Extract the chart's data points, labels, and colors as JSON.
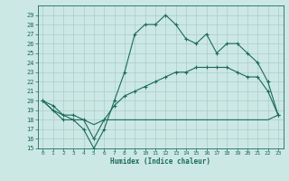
{
  "title": "",
  "xlabel": "Humidex (Indice chaleur)",
  "ylabel": "",
  "bg_color": "#cce8e4",
  "grid_color": "#aaccca",
  "line_color": "#1a6b5a",
  "xlim": [
    -0.5,
    23.5
  ],
  "ylim": [
    15,
    30
  ],
  "yticks": [
    15,
    16,
    17,
    18,
    19,
    20,
    21,
    22,
    23,
    24,
    25,
    26,
    27,
    28,
    29
  ],
  "xticks": [
    0,
    1,
    2,
    3,
    4,
    5,
    6,
    7,
    8,
    9,
    10,
    11,
    12,
    13,
    14,
    15,
    16,
    17,
    18,
    19,
    20,
    21,
    22,
    23
  ],
  "line1_x": [
    0,
    1,
    2,
    3,
    4,
    5,
    6,
    7,
    8,
    9,
    10,
    11,
    12,
    13,
    14,
    15,
    16,
    17,
    18,
    19,
    20,
    21,
    22,
    23
  ],
  "line1_y": [
    20,
    19,
    18,
    18,
    17,
    15,
    17,
    20,
    23,
    27,
    28,
    28,
    29,
    28,
    26.5,
    26,
    27,
    25,
    26,
    26,
    25,
    24,
    22,
    18.5
  ],
  "line2_x": [
    0,
    1,
    2,
    3,
    4,
    5,
    6,
    7,
    8,
    9,
    10,
    11,
    12,
    13,
    14,
    15,
    16,
    17,
    18,
    19,
    20,
    21,
    22,
    23
  ],
  "line2_y": [
    20,
    19.5,
    18.5,
    18.5,
    18,
    16,
    18,
    19.5,
    20.5,
    21,
    21.5,
    22,
    22.5,
    23,
    23,
    23.5,
    23.5,
    23.5,
    23.5,
    23,
    22.5,
    22.5,
    21,
    18.5
  ],
  "line3_x": [
    0,
    1,
    2,
    3,
    4,
    5,
    6,
    7,
    8,
    9,
    10,
    11,
    12,
    13,
    14,
    15,
    16,
    17,
    18,
    19,
    20,
    21,
    22,
    23
  ],
  "line3_y": [
    20,
    19,
    18.5,
    18,
    18,
    17.5,
    18,
    18,
    18,
    18,
    18,
    18,
    18,
    18,
    18,
    18,
    18,
    18,
    18,
    18,
    18,
    18,
    18,
    18.5
  ]
}
